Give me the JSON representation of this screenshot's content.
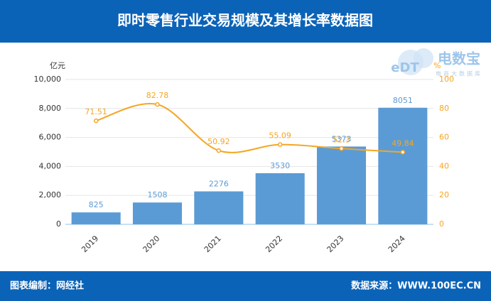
{
  "header": {
    "title": "即时零售行业交易规模及其增长率数据图"
  },
  "logo": {
    "brand": "eDT",
    "name": "电数宝",
    "tagline": "电商大数据库"
  },
  "chart_data": {
    "type": "bar-line",
    "ylabel": "亿元",
    "y2label": "%",
    "categories": [
      "2019",
      "2020",
      "2021",
      "2022",
      "2023",
      "2024"
    ],
    "series": [
      {
        "type": "bar",
        "color": "#5b9bd5",
        "values": [
          825,
          1508,
          2276,
          3530,
          5373,
          8051
        ]
      },
      {
        "type": "line",
        "axis": "y2",
        "color": "#f5a623",
        "values": [
          71.51,
          82.78,
          50.92,
          55.09,
          52.3,
          49.84
        ]
      }
    ],
    "ylim": [
      0,
      10000
    ],
    "yticks": [
      0,
      {
        "value": 2000,
        "label": "2,000"
      },
      {
        "value": 4000,
        "label": "4,000"
      },
      {
        "value": 6000,
        "label": "6,000"
      },
      {
        "value": 8000,
        "label": "8,000"
      },
      {
        "value": 10000,
        "label": "10,000"
      }
    ],
    "y2lim": [
      0,
      100
    ],
    "y2ticks": [
      0,
      20,
      40,
      60,
      80,
      100
    ],
    "grid": true
  },
  "footer": {
    "left": "图表编制：网经社",
    "right": "数据来源：WWW.100EC.CN"
  }
}
